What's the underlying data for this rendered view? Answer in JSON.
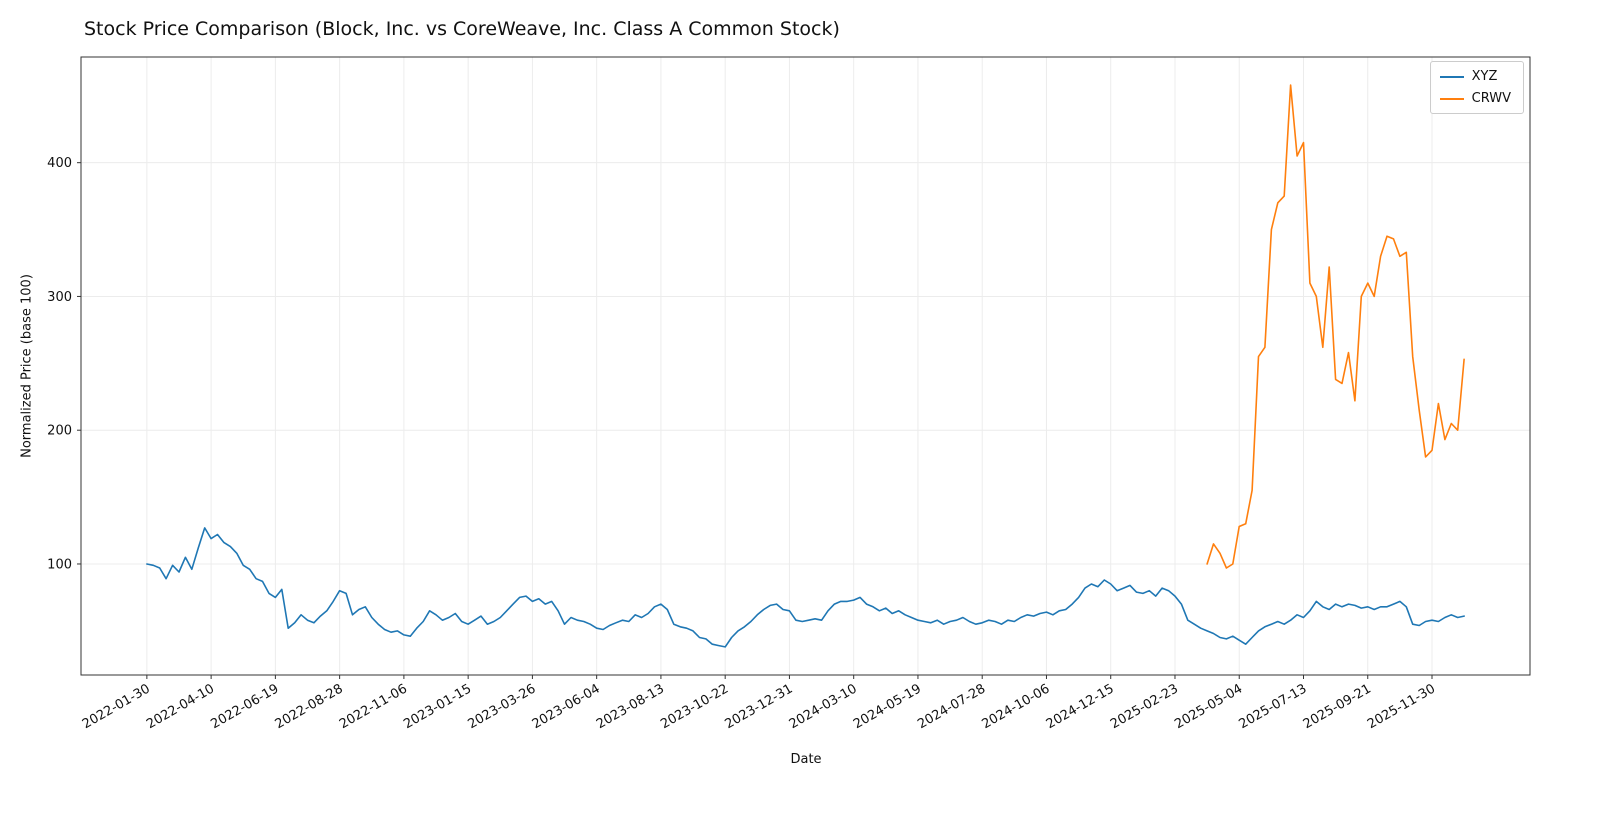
{
  "chart_data": {
    "type": "line",
    "title": "Stock Price Comparison (Block, Inc. vs CoreWeave, Inc. Class A Common Stock)",
    "xlabel": "Date",
    "ylabel": "Normalized Price (base 100)",
    "x_unit": "weeks since 2022-01-30",
    "grid": true,
    "legend_position": "upper right",
    "x_tick_rotation_deg": 30,
    "xlim_weeks": [
      -10.25,
      215.25
    ],
    "ylim": [
      17,
      479
    ],
    "y_ticks": [
      100,
      200,
      300,
      400
    ],
    "x_ticks": [
      {
        "x": 0,
        "label": "2022-01-30"
      },
      {
        "x": 10,
        "label": "2022-04-10"
      },
      {
        "x": 20,
        "label": "2022-06-19"
      },
      {
        "x": 30,
        "label": "2022-08-28"
      },
      {
        "x": 40,
        "label": "2022-11-06"
      },
      {
        "x": 50,
        "label": "2023-01-15"
      },
      {
        "x": 60,
        "label": "2023-03-26"
      },
      {
        "x": 70,
        "label": "2023-06-04"
      },
      {
        "x": 80,
        "label": "2023-08-13"
      },
      {
        "x": 90,
        "label": "2023-10-22"
      },
      {
        "x": 100,
        "label": "2023-12-31"
      },
      {
        "x": 110,
        "label": "2024-03-10"
      },
      {
        "x": 120,
        "label": "2024-05-19"
      },
      {
        "x": 130,
        "label": "2024-07-28"
      },
      {
        "x": 140,
        "label": "2024-10-06"
      },
      {
        "x": 150,
        "label": "2024-12-15"
      },
      {
        "x": 160,
        "label": "2025-02-23"
      },
      {
        "x": 170,
        "label": "2025-05-04"
      },
      {
        "x": 180,
        "label": "2025-07-13"
      },
      {
        "x": 190,
        "label": "2025-09-21"
      },
      {
        "x": 200,
        "label": "2025-11-30"
      }
    ],
    "legend": {
      "entries": [
        {
          "label": "XYZ",
          "color": "#1f77b4"
        },
        {
          "label": "CRWV",
          "color": "#ff7f0e"
        }
      ]
    },
    "series": [
      {
        "name": "XYZ",
        "color": "#1f77b4",
        "x_start": 0,
        "x_step": 1,
        "values": [
          100,
          99,
          97,
          89,
          99,
          94,
          105,
          96,
          112,
          127,
          119,
          122,
          116,
          113,
          108,
          99,
          96,
          89,
          87,
          78,
          75,
          81,
          52,
          56,
          62,
          58,
          56,
          61,
          65,
          72,
          80,
          78,
          62,
          66,
          68,
          60,
          55,
          51,
          49,
          50,
          47,
          46,
          52,
          57,
          65,
          62,
          58,
          60,
          63,
          57,
          55,
          58,
          61,
          55,
          57,
          60,
          65,
          70,
          75,
          76,
          72,
          74,
          70,
          72,
          65,
          55,
          60,
          58,
          57,
          55,
          52,
          51,
          54,
          56,
          58,
          57,
          62,
          60,
          63,
          68,
          70,
          66,
          55,
          53,
          52,
          50,
          45,
          44,
          40,
          39,
          38,
          45,
          50,
          53,
          57,
          62,
          66,
          69,
          70,
          66,
          65,
          58,
          57,
          58,
          59,
          58,
          65,
          70,
          72,
          72,
          73,
          75,
          70,
          68,
          65,
          67,
          63,
          65,
          62,
          60,
          58,
          57,
          56,
          58,
          55,
          57,
          58,
          60,
          57,
          55,
          56,
          58,
          57,
          55,
          58,
          57,
          60,
          62,
          61,
          63,
          64,
          62,
          65,
          66,
          70,
          75,
          82,
          85,
          83,
          88,
          85,
          80,
          82,
          84,
          79,
          78,
          80,
          76,
          82,
          80,
          76,
          70,
          58,
          55,
          52,
          50,
          48,
          45,
          44,
          46,
          43,
          40,
          45,
          50,
          53,
          55,
          57,
          55,
          58,
          62,
          60,
          65,
          72,
          68,
          66,
          70,
          68,
          70,
          69,
          67,
          68,
          66,
          68,
          68,
          70,
          72,
          68,
          55,
          54,
          57,
          58,
          57,
          60,
          62,
          60,
          61
        ]
      },
      {
        "name": "CRWV",
        "color": "#ff7f0e",
        "x_start": 165,
        "x_step": 1,
        "values": [
          100,
          115,
          108,
          97,
          100,
          128,
          130,
          155,
          255,
          262,
          350,
          370,
          375,
          458,
          405,
          415,
          310,
          300,
          262,
          322,
          238,
          235,
          258,
          222,
          300,
          310,
          300,
          330,
          345,
          343,
          330,
          333,
          255,
          215,
          180,
          185,
          220,
          193,
          205,
          200,
          253
        ]
      }
    ]
  }
}
